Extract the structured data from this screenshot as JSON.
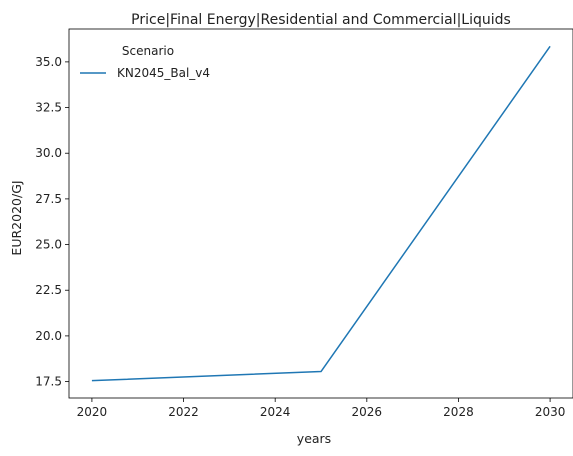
{
  "chart_data": {
    "type": "line",
    "title": "Price|Final Energy|Residential and Commercial|Liquids",
    "xlabel": "years",
    "ylabel": "EUR2020/GJ",
    "xlim": [
      2019.5,
      2030.5
    ],
    "ylim": [
      16.6,
      36.8
    ],
    "xticks": [
      2020,
      2022,
      2024,
      2026,
      2028,
      2030
    ],
    "yticks": [
      17.5,
      20.0,
      22.5,
      25.0,
      27.5,
      30.0,
      32.5,
      35.0
    ],
    "ytick_labels": [
      "17.5",
      "20.0",
      "22.5",
      "25.0",
      "27.5",
      "30.0",
      "32.5",
      "35.0"
    ],
    "grid": false,
    "legend": {
      "title": "Scenario",
      "placement": "top-left"
    },
    "series": [
      {
        "name": "KN2045_Bal_v4",
        "color": "#1f77b4",
        "x": [
          2020,
          2025,
          2030
        ],
        "y": [
          17.55,
          18.05,
          35.85
        ]
      }
    ]
  }
}
